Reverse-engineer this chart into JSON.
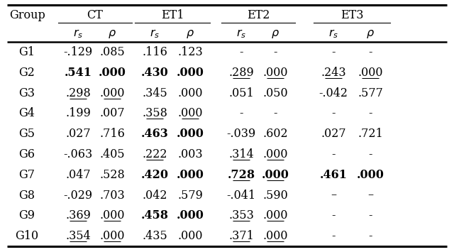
{
  "groups": [
    "G1",
    "G2",
    "G3",
    "G4",
    "G5",
    "G6",
    "G7",
    "G8",
    "G9",
    "G10"
  ],
  "data": [
    [
      "-.129",
      ".085",
      ".116",
      ".123",
      "-",
      "-",
      "-",
      "-"
    ],
    [
      ".541",
      ".000",
      ".430",
      ".000",
      ".289",
      ".000",
      ".243",
      ".000"
    ],
    [
      ".298",
      ".000",
      ".345",
      ".000",
      ".051",
      ".050",
      "-.042",
      ".577"
    ],
    [
      ".199",
      ".007",
      ".358",
      ".000",
      "-",
      "-",
      "-",
      "-"
    ],
    [
      ".027",
      ".716",
      ".463",
      ".000",
      "-.039",
      ".602",
      ".027",
      ".721"
    ],
    [
      "-.063",
      ".405",
      ".222",
      ".003",
      ".314",
      ".000",
      "-",
      "-"
    ],
    [
      ".047",
      ".528",
      ".420",
      ".000",
      ".728",
      ".000",
      ".461",
      ".000"
    ],
    [
      "-.029",
      ".703",
      ".042",
      ".579",
      "-.041",
      ".590",
      "–",
      "–"
    ],
    [
      ".369",
      ".000",
      ".458",
      ".000",
      ".353",
      ".000",
      "-",
      "-"
    ],
    [
      ".354",
      ".000",
      ".435",
      ".000",
      ".371",
      ".000",
      "-",
      "-"
    ]
  ],
  "bold": [
    [
      false,
      false,
      false,
      false,
      false,
      false,
      false,
      false
    ],
    [
      true,
      true,
      true,
      true,
      false,
      false,
      false,
      false
    ],
    [
      false,
      false,
      false,
      false,
      false,
      false,
      false,
      false
    ],
    [
      false,
      false,
      false,
      false,
      false,
      false,
      false,
      false
    ],
    [
      false,
      false,
      true,
      true,
      false,
      false,
      false,
      false
    ],
    [
      false,
      false,
      false,
      false,
      false,
      false,
      false,
      false
    ],
    [
      false,
      false,
      true,
      true,
      true,
      true,
      true,
      true
    ],
    [
      false,
      false,
      false,
      false,
      false,
      false,
      false,
      false
    ],
    [
      false,
      false,
      true,
      true,
      false,
      false,
      false,
      false
    ],
    [
      false,
      false,
      false,
      false,
      false,
      false,
      false,
      false
    ]
  ],
  "underline": [
    [
      false,
      false,
      false,
      false,
      false,
      false,
      false,
      false
    ],
    [
      false,
      false,
      false,
      false,
      true,
      true,
      true,
      true
    ],
    [
      true,
      true,
      false,
      false,
      false,
      false,
      false,
      false
    ],
    [
      false,
      false,
      true,
      true,
      false,
      false,
      false,
      false
    ],
    [
      false,
      false,
      false,
      false,
      false,
      false,
      false,
      false
    ],
    [
      false,
      false,
      true,
      false,
      true,
      true,
      false,
      false
    ],
    [
      false,
      false,
      false,
      false,
      true,
      true,
      false,
      false
    ],
    [
      false,
      false,
      false,
      false,
      false,
      false,
      false,
      false
    ],
    [
      true,
      true,
      false,
      false,
      true,
      true,
      false,
      false
    ],
    [
      true,
      true,
      false,
      false,
      true,
      true,
      false,
      false
    ]
  ],
  "span_labels": [
    "CT",
    "ET1",
    "ET2",
    "ET3"
  ],
  "fig_width": 6.4,
  "fig_height": 3.55,
  "dpi": 100
}
